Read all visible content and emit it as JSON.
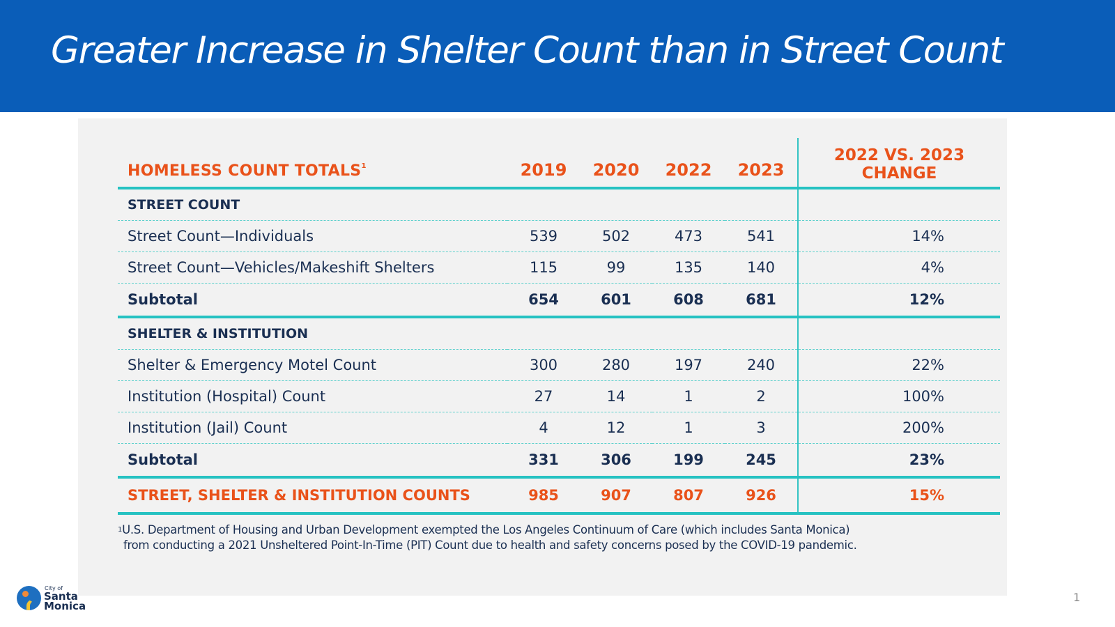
{
  "slide": {
    "title": "Greater Increase in Shelter Count than in Street Count",
    "page_number": "1",
    "colors": {
      "banner": "#0a5db8",
      "accent_orange": "#e9521a",
      "teal_rule": "#26c2c2",
      "navy_text": "#1a2f52",
      "panel": "#f2f2f2"
    }
  },
  "table": {
    "headers": {
      "label": "HOMELESS COUNT TOTALS",
      "label_sup": "1",
      "years": [
        "2019",
        "2020",
        "2022",
        "2023"
      ],
      "change_line1": "2022 VS. 2023",
      "change_line2": "CHANGE"
    },
    "street": {
      "section_label": "STREET COUNT",
      "rows": [
        {
          "label": "Street Count—Individuals",
          "values": [
            "539",
            "502",
            "473",
            "541"
          ],
          "change": "14%"
        },
        {
          "label": "Street Count—Vehicles/Makeshift Shelters",
          "values": [
            "115",
            "99",
            "135",
            "140"
          ],
          "change": "4%"
        }
      ],
      "subtotal": {
        "label": "Subtotal",
        "values": [
          "654",
          "601",
          "608",
          "681"
        ],
        "change": "12%"
      }
    },
    "shelter": {
      "section_label": "SHELTER & INSTITUTION",
      "rows": [
        {
          "label": "Shelter & Emergency Motel Count",
          "values": [
            "300",
            "280",
            "197",
            "240"
          ],
          "change": "22%"
        },
        {
          "label": "Institution (Hospital) Count",
          "values": [
            "27",
            "14",
            "1",
            "2"
          ],
          "change": "100%"
        },
        {
          "label": "Institution (Jail) Count",
          "values": [
            "4",
            "12",
            "1",
            "3"
          ],
          "change": "200%"
        }
      ],
      "subtotal": {
        "label": "Subtotal",
        "values": [
          "331",
          "306",
          "199",
          "245"
        ],
        "change": "23%"
      }
    },
    "total": {
      "label": "STREET, SHELTER & INSTITUTION COUNTS",
      "values": [
        "985",
        "907",
        "807",
        "926"
      ],
      "change": "15%"
    }
  },
  "footnote": {
    "mark": "1",
    "line1": "U.S. Department of Housing and Urban Development exempted the Los Angeles Continuum of Care  (which includes Santa Monica)",
    "line2": "from conducting a 2021 Unsheltered Point-In-Time (PIT) Count due to health and safety concerns posed by the COVID-19 pandemic."
  },
  "logo": {
    "icon": "city-seal-icon",
    "small_text": "City of",
    "name_line1": "Santa",
    "name_line2": "Monica"
  }
}
